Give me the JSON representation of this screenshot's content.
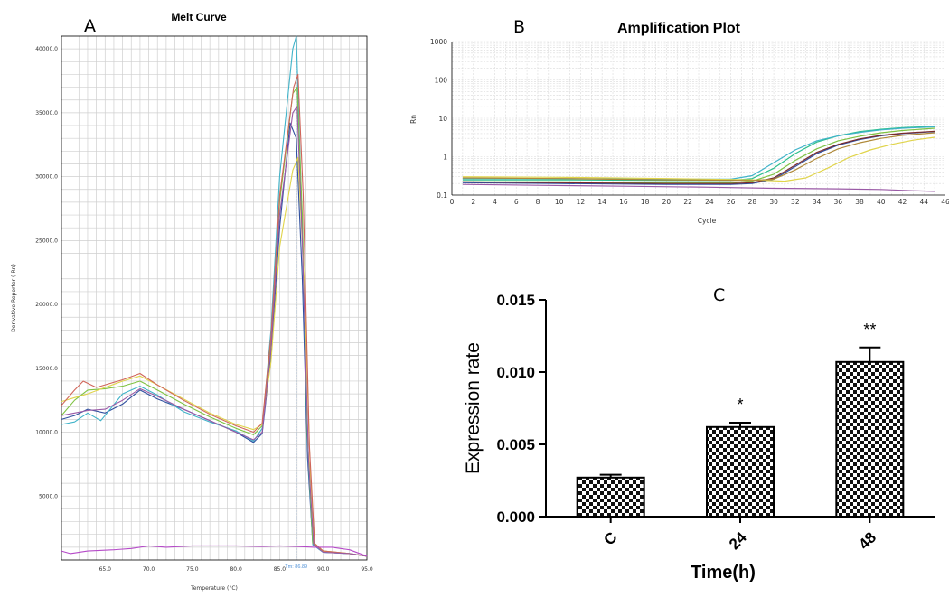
{
  "panel_letters": {
    "a": "A",
    "b": "B",
    "c": "C"
  },
  "line_colors": [
    "#2f4f9f",
    "#3fb3c9",
    "#7fc242",
    "#e0d44a",
    "#d0655a",
    "#9a5aa6",
    "#7a2a2a",
    "#2cbf8c",
    "#b08a3a",
    "#b54ac8"
  ],
  "chart_data": [
    {
      "type": "line",
      "title": "Melt Curve",
      "xlabel": "Temperature (°C)",
      "ylabel": "Derivative Reporter (-Rn)",
      "xlim": [
        60,
        95
      ],
      "ylim": [
        0,
        41000
      ],
      "x_ticks": [
        "65.0",
        "70.0",
        "75.0",
        "80.0",
        "85.0",
        "90.0",
        "95.0"
      ],
      "y_ticks": [
        "5000.0",
        "10000.0",
        "15000.0",
        "20000.0",
        "25000.0",
        "30000.0",
        "35000.0",
        "40000.0"
      ],
      "tm_marker": {
        "x": 86.89,
        "label": "Tm: 86.89"
      },
      "grid": true,
      "series": [
        {
          "color": "#2f4f9f",
          "points": [
            [
              60,
              11000
            ],
            [
              61.5,
              11300
            ],
            [
              63,
              11800
            ],
            [
              65,
              11500
            ],
            [
              67,
              12200
            ],
            [
              69,
              13300
            ],
            [
              71,
              12600
            ],
            [
              74,
              11800
            ],
            [
              77,
              10900
            ],
            [
              80,
              10000
            ],
            [
              82,
              9200
            ],
            [
              83,
              9900
            ],
            [
              84,
              16000
            ],
            [
              85,
              26000
            ],
            [
              86.2,
              34200
            ],
            [
              86.9,
              33000
            ],
            [
              87.6,
              22000
            ],
            [
              88.2,
              8000
            ],
            [
              88.8,
              1200
            ],
            [
              90,
              600
            ],
            [
              93,
              500
            ],
            [
              95,
              300
            ]
          ]
        },
        {
          "color": "#3fb3c9",
          "points": [
            [
              60,
              10600
            ],
            [
              61.5,
              10800
            ],
            [
              63,
              11500
            ],
            [
              64.5,
              10900
            ],
            [
              67,
              13000
            ],
            [
              69,
              13600
            ],
            [
              71,
              12900
            ],
            [
              74,
              11600
            ],
            [
              77,
              10800
            ],
            [
              80,
              10100
            ],
            [
              82,
              9300
            ],
            [
              83,
              10300
            ],
            [
              84,
              18000
            ],
            [
              85,
              30000
            ],
            [
              86.5,
              40000
            ],
            [
              86.9,
              41000
            ],
            [
              87.5,
              28000
            ],
            [
              88.2,
              9000
            ],
            [
              88.8,
              1200
            ],
            [
              90,
              600
            ],
            [
              93,
              500
            ],
            [
              95,
              300
            ]
          ]
        },
        {
          "color": "#7fc242",
          "points": [
            [
              60,
              11300
            ],
            [
              61.5,
              12500
            ],
            [
              63,
              13300
            ],
            [
              65,
              13400
            ],
            [
              67,
              13600
            ],
            [
              69,
              14000
            ],
            [
              71,
              13300
            ],
            [
              74,
              12200
            ],
            [
              77,
              11200
            ],
            [
              80,
              10300
            ],
            [
              82,
              9800
            ],
            [
              83,
              10500
            ],
            [
              84,
              17000
            ],
            [
              85,
              28000
            ],
            [
              86.5,
              36500
            ],
            [
              87,
              37000
            ],
            [
              87.6,
              27000
            ],
            [
              88.2,
              9500
            ],
            [
              88.8,
              1300
            ],
            [
              90,
              700
            ],
            [
              93,
              500
            ],
            [
              95,
              300
            ]
          ]
        },
        {
          "color": "#e0d44a",
          "points": [
            [
              60,
              12400
            ],
            [
              61.5,
              12700
            ],
            [
              63,
              13000
            ],
            [
              65,
              13500
            ],
            [
              67,
              14000
            ],
            [
              69,
              14400
            ],
            [
              71,
              13700
            ],
            [
              74,
              12600
            ],
            [
              77,
              11500
            ],
            [
              80,
              10600
            ],
            [
              82,
              10200
            ],
            [
              83,
              10600
            ],
            [
              84,
              15500
            ],
            [
              85,
              24500
            ],
            [
              86.5,
              30500
            ],
            [
              87.1,
              31500
            ],
            [
              87.8,
              22000
            ],
            [
              88.5,
              7000
            ],
            [
              89,
              1300
            ],
            [
              90,
              700
            ],
            [
              93,
              500
            ],
            [
              95,
              300
            ]
          ]
        },
        {
          "color": "#d0655a",
          "points": [
            [
              60,
              12100
            ],
            [
              61.5,
              13300
            ],
            [
              62.5,
              14000
            ],
            [
              64,
              13500
            ],
            [
              67,
              14100
            ],
            [
              69,
              14600
            ],
            [
              71,
              13700
            ],
            [
              74,
              12500
            ],
            [
              77,
              11400
            ],
            [
              80,
              10500
            ],
            [
              82,
              10000
            ],
            [
              83,
              10700
            ],
            [
              84,
              17500
            ],
            [
              85,
              28500
            ],
            [
              86.6,
              37000
            ],
            [
              87.1,
              38000
            ],
            [
              87.7,
              28500
            ],
            [
              88.4,
              9000
            ],
            [
              89,
              1300
            ],
            [
              90,
              700
            ],
            [
              93,
              500
            ],
            [
              95,
              300
            ]
          ]
        },
        {
          "color": "#9a5aa6",
          "points": [
            [
              60,
              11300
            ],
            [
              61.5,
              11500
            ],
            [
              63,
              11700
            ],
            [
              65,
              11800
            ],
            [
              67,
              12500
            ],
            [
              69,
              13400
            ],
            [
              71,
              12800
            ],
            [
              74,
              11800
            ],
            [
              77,
              10900
            ],
            [
              80,
              10000
            ],
            [
              82,
              9400
            ],
            [
              83,
              10000
            ],
            [
              84,
              16500
            ],
            [
              85,
              27000
            ],
            [
              86.5,
              35000
            ],
            [
              87,
              35500
            ],
            [
              87.6,
              25000
            ],
            [
              88.3,
              8000
            ],
            [
              88.9,
              1200
            ],
            [
              90,
              600
            ],
            [
              93,
              500
            ],
            [
              95,
              300
            ]
          ]
        },
        {
          "color": "#b54ac8",
          "points": [
            [
              60,
              700
            ],
            [
              61,
              500
            ],
            [
              63,
              700
            ],
            [
              66,
              800
            ],
            [
              68,
              900
            ],
            [
              70,
              1100
            ],
            [
              72,
              1000
            ],
            [
              75,
              1100
            ],
            [
              78,
              1100
            ],
            [
              80,
              1100
            ],
            [
              83,
              1050
            ],
            [
              85,
              1100
            ],
            [
              87,
              1050
            ],
            [
              89,
              1000
            ],
            [
              91,
              1000
            ],
            [
              93,
              800
            ],
            [
              95,
              300
            ]
          ]
        }
      ]
    },
    {
      "type": "line",
      "title": "Amplification Plot",
      "xlabel": "Cycle",
      "ylabel": "Rn",
      "xlim": [
        0,
        46
      ],
      "ylim": [
        0.1,
        1000
      ],
      "yscale": "log",
      "x_ticks": [
        "0",
        "2",
        "4",
        "6",
        "8",
        "10",
        "12",
        "14",
        "16",
        "18",
        "20",
        "22",
        "24",
        "26",
        "28",
        "30",
        "32",
        "34",
        "36",
        "38",
        "40",
        "42",
        "44",
        "46"
      ],
      "y_ticks": [
        "0.1",
        "1",
        "10",
        "100",
        "1000"
      ],
      "grid": true,
      "series": [
        {
          "color": "#2cbf8c",
          "points": [
            [
              1,
              0.25
            ],
            [
              10,
              0.25
            ],
            [
              20,
              0.24
            ],
            [
              26,
              0.24
            ],
            [
              28,
              0.27
            ],
            [
              30,
              0.5
            ],
            [
              32,
              1.2
            ],
            [
              34,
              2.4
            ],
            [
              36,
              3.5
            ],
            [
              38,
              4.5
            ],
            [
              40,
              5.2
            ],
            [
              42,
              5.7
            ],
            [
              45,
              6.2
            ]
          ]
        },
        {
          "color": "#3fb3c9",
          "points": [
            [
              1,
              0.27
            ],
            [
              10,
              0.27
            ],
            [
              20,
              0.26
            ],
            [
              26,
              0.26
            ],
            [
              28,
              0.32
            ],
            [
              30,
              0.7
            ],
            [
              32,
              1.5
            ],
            [
              34,
              2.6
            ],
            [
              36,
              3.5
            ],
            [
              38,
              4.3
            ],
            [
              40,
              5.0
            ],
            [
              42,
              5.5
            ],
            [
              45,
              6.0
            ]
          ]
        },
        {
          "color": "#7fc242",
          "points": [
            [
              1,
              0.22
            ],
            [
              10,
              0.22
            ],
            [
              20,
              0.21
            ],
            [
              26,
              0.21
            ],
            [
              28,
              0.23
            ],
            [
              30,
              0.35
            ],
            [
              32,
              0.8
            ],
            [
              34,
              1.6
            ],
            [
              36,
              2.6
            ],
            [
              38,
              3.4
            ],
            [
              40,
              4.2
            ],
            [
              42,
              4.8
            ],
            [
              45,
              5.5
            ]
          ]
        },
        {
          "color": "#2f4f9f",
          "points": [
            [
              1,
              0.21
            ],
            [
              10,
              0.2
            ],
            [
              20,
              0.19
            ],
            [
              26,
              0.19
            ],
            [
              28,
              0.2
            ],
            [
              30,
              0.26
            ],
            [
              32,
              0.55
            ],
            [
              34,
              1.2
            ],
            [
              36,
              2.0
            ],
            [
              38,
              2.8
            ],
            [
              40,
              3.5
            ],
            [
              42,
              4.0
            ],
            [
              45,
              4.5
            ]
          ]
        },
        {
          "color": "#7a2a2a",
          "points": [
            [
              1,
              0.22
            ],
            [
              10,
              0.21
            ],
            [
              20,
              0.2
            ],
            [
              26,
              0.2
            ],
            [
              28,
              0.21
            ],
            [
              30,
              0.28
            ],
            [
              32,
              0.6
            ],
            [
              34,
              1.3
            ],
            [
              36,
              2.1
            ],
            [
              38,
              2.9
            ],
            [
              40,
              3.6
            ],
            [
              42,
              4.1
            ],
            [
              45,
              4.6
            ]
          ]
        },
        {
          "color": "#e0d44a",
          "points": [
            [
              1,
              0.3
            ],
            [
              10,
              0.29
            ],
            [
              20,
              0.27
            ],
            [
              28,
              0.25
            ],
            [
              31,
              0.23
            ],
            [
              33,
              0.28
            ],
            [
              35,
              0.5
            ],
            [
              37,
              0.95
            ],
            [
              39,
              1.5
            ],
            [
              41,
              2.1
            ],
            [
              43,
              2.7
            ],
            [
              45,
              3.2
            ]
          ]
        },
        {
          "color": "#b08a3a",
          "points": [
            [
              1,
              0.28
            ],
            [
              10,
              0.27
            ],
            [
              20,
              0.25
            ],
            [
              28,
              0.24
            ],
            [
              30,
              0.26
            ],
            [
              32,
              0.45
            ],
            [
              34,
              0.9
            ],
            [
              36,
              1.6
            ],
            [
              38,
              2.3
            ],
            [
              40,
              3.0
            ],
            [
              42,
              3.6
            ],
            [
              45,
              4.2
            ]
          ]
        },
        {
          "color": "#9a5aa6",
          "points": [
            [
              1,
              0.19
            ],
            [
              8,
              0.18
            ],
            [
              16,
              0.17
            ],
            [
              24,
              0.16
            ],
            [
              30,
              0.15
            ],
            [
              36,
              0.145
            ],
            [
              40,
              0.14
            ],
            [
              43,
              0.13
            ],
            [
              45,
              0.125
            ]
          ]
        }
      ]
    },
    {
      "type": "bar",
      "title": "",
      "xlabel": "Time(h)",
      "ylabel": "Expression rate",
      "categories": [
        "C",
        "24",
        "48"
      ],
      "values": [
        0.0027,
        0.0062,
        0.0107
      ],
      "errors": [
        0.0002,
        0.0003,
        0.001
      ],
      "significance": [
        "",
        "*",
        "**"
      ],
      "ylim": [
        0,
        0.015
      ],
      "y_ticks": [
        "0.000",
        "0.005",
        "0.010",
        "0.015"
      ],
      "fill_pattern": "checkerboard"
    }
  ]
}
